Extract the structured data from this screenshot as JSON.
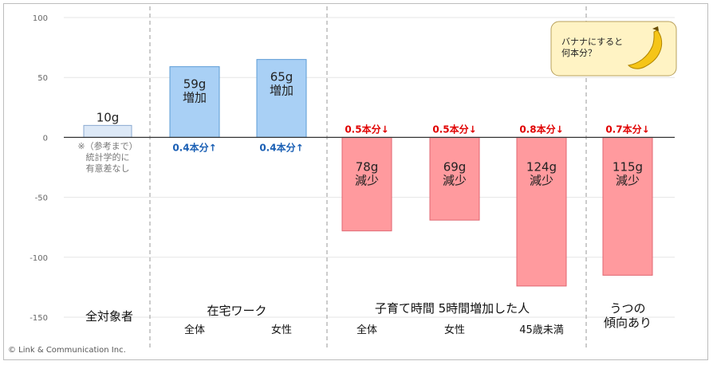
{
  "chart_data": {
    "type": "bar",
    "ylim": [
      -150,
      100
    ],
    "y_ticks": [
      "100",
      "50",
      "0",
      "-50",
      "-100",
      "-150"
    ],
    "grid": true,
    "bars": [
      {
        "value": 10,
        "label": "10g",
        "group": "all",
        "style": "light"
      },
      {
        "value": 59,
        "label_lines": [
          "59g",
          "増加"
        ],
        "qty": "0.4本分↑",
        "group": "remote",
        "style": "blue"
      },
      {
        "value": 65,
        "label_lines": [
          "65g",
          "増加"
        ],
        "qty": "0.4本分↑",
        "group": "remote",
        "style": "blue"
      },
      {
        "value": -78,
        "label_lines": [
          "78g",
          "減少"
        ],
        "qty": "0.5本分↓",
        "group": "childcare",
        "style": "red"
      },
      {
        "value": -69,
        "label_lines": [
          "69g",
          "減少"
        ],
        "qty": "0.5本分↓",
        "group": "childcare",
        "style": "red"
      },
      {
        "value": -124,
        "label_lines": [
          "124g",
          "減少"
        ],
        "qty": "0.8本分↓",
        "group": "childcare",
        "style": "red"
      },
      {
        "value": -115,
        "label_lines": [
          "115g",
          "減少"
        ],
        "qty": "0.7本分↓",
        "group": "depression",
        "style": "red"
      }
    ],
    "note_lines": [
      "※（参考まで）",
      "統計学的に",
      "有意差なし"
    ],
    "category_main": [
      "全対象者",
      "在宅ワーク",
      "子育て時間 5時間増加した人",
      "うつの",
      "傾向あり"
    ],
    "category_sub": [
      "全体",
      "女性",
      "全体",
      "女性",
      "45歳未満"
    ],
    "callout_lines": [
      "バナナにすると",
      "何本分？"
    ],
    "copyright": "© Link & Communication Inc.",
    "colors": {
      "blue_fill": "#a9d0f5",
      "blue_stroke": "#5b9bd5",
      "red_fill": "#ff9a9e",
      "red_stroke": "#e06670",
      "light_fill": "#dde9f7",
      "light_stroke": "#8aa9d0",
      "callout_bg": "#fff3c4",
      "banana": "#f5c518"
    }
  }
}
